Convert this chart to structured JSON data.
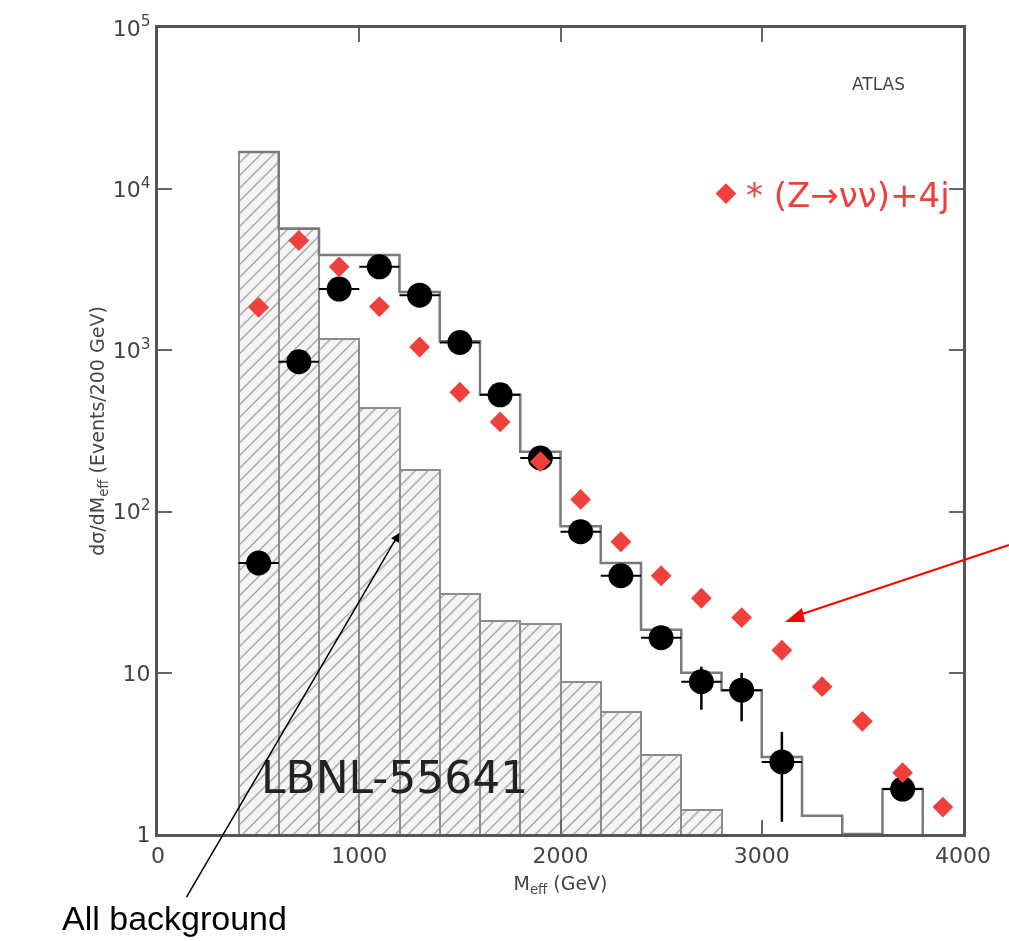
{
  "chart_data": {
    "type": "scatter",
    "xlabel": "M$_{eff}$ (GeV)",
    "ylabel": "dσ/dM$_{eff}$ (Events/200 GeV)",
    "log": "y",
    "grid": false,
    "legend": "top right",
    "xlim": [
      0,
      4000
    ],
    "xticks": [
      0,
      1000,
      2000,
      3000,
      4000
    ],
    "ylim": [
      1,
      100000
    ],
    "yticks": [
      {
        "value": 1,
        "label": "1"
      },
      {
        "value": 10,
        "label": "10"
      },
      {
        "value": 100,
        "label": "10$^{2}$"
      },
      {
        "value": 1000,
        "label": "10$^{3}$"
      },
      {
        "value": 10000,
        "label": "10$^{4}$"
      },
      {
        "value": 100000,
        "label": "10$^{5}$"
      }
    ],
    "series": [
      {
        "type": "histogram",
        "color": "#8c8c8c",
        "bins": [
          400,
          600,
          800,
          1000,
          1200,
          1400,
          1600,
          1800,
          2000,
          2200,
          2400,
          2600,
          2800
        ],
        "values": [
          17000,
          5700,
          1170,
          440,
          182,
          31,
          21,
          20,
          8.8,
          5.7,
          3.1,
          1.4
        ]
      },
      {
        "type": "step",
        "color": "#7a7a7a",
        "x": [
          400,
          600,
          800,
          1000,
          1200,
          1400,
          1600,
          1800,
          2000,
          2200,
          2400,
          2600,
          2800,
          3000,
          3200,
          3400,
          3600,
          3800
        ],
        "values": [
          17000,
          5700,
          3900,
          3900,
          2300,
          1140,
          530,
          235,
          81,
          48,
          18.5,
          10,
          7.8,
          3.0,
          1.3,
          1,
          1.9,
          1
        ]
      },
      {
        "color": "#000000",
        "marker": "circle",
        "x": [
          500,
          700,
          900,
          1100,
          1300,
          1500,
          1700,
          1900,
          2100,
          2300,
          2500,
          2700,
          2900,
          3100,
          3700
        ],
        "values": [
          48,
          850,
          2400,
          3300,
          2200,
          1120,
          530,
          215,
          75,
          40,
          16.5,
          8.8,
          7.8,
          2.8,
          1.9
        ],
        "errors": [
          null,
          null,
          null,
          null,
          null,
          null,
          null,
          null,
          null,
          null,
          null,
          [
            5.9,
            10.9
          ],
          [
            5.0,
            10.0
          ],
          [
            1.19,
            4.3
          ],
          null
        ],
        "xerrors": [
          100,
          100,
          100,
          100,
          100,
          100,
          100,
          100,
          100,
          100,
          100,
          100,
          100,
          100,
          100
        ]
      },
      {
        "name": "* (Z→νν)+4j",
        "color": "#f0403c",
        "marker": "diamond",
        "x": [
          500,
          700,
          900,
          1100,
          1300,
          1500,
          1700,
          1900,
          2100,
          2300,
          2500,
          2700,
          2900,
          3100,
          3300,
          3500,
          3700,
          3900
        ],
        "values": [
          1850,
          4800,
          3300,
          1870,
          1050,
          550,
          360,
          204,
          119,
          65,
          40,
          29,
          22,
          13.8,
          8.2,
          5.0,
          2.4,
          1.47
        ]
      }
    ],
    "annotations": [
      "ATLAS",
      "LBNL-55641",
      {
        "text": "All background",
        "x": 1200,
        "y": 74
      }
    ]
  }
}
